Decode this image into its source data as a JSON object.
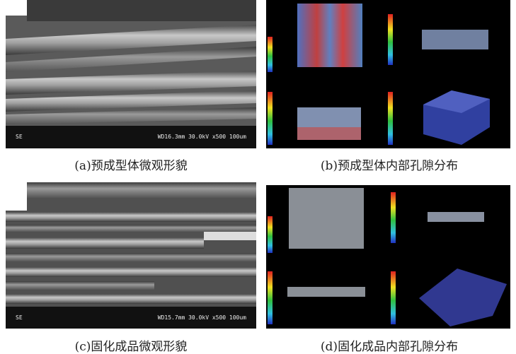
{
  "panels": [
    {
      "caption": "(a)预成型体微观形貌",
      "sem_left": "SE",
      "sem_right": "WD16.3mm 30.0kV x500 100um"
    },
    {
      "caption": "(b)预成型体内部孔隙分布"
    },
    {
      "caption": "(c)固化成品微观形貌",
      "sem_left": "SE",
      "sem_right": "WD15.7mm 30.0kV x500 100um"
    },
    {
      "caption": "(d)固化成品内部孔隙分布"
    }
  ]
}
